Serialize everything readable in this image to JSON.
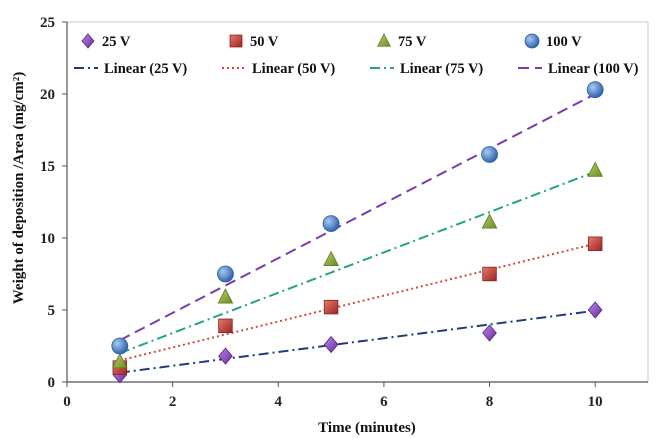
{
  "chart_data": {
    "type": "scatter",
    "xlabel": "Time (minutes)",
    "ylabel": "Weight of deposition /Area (mg/cm²)",
    "xlim": [
      0,
      11
    ],
    "ylim": [
      0,
      25
    ],
    "xticks": [
      0,
      2,
      4,
      6,
      8,
      10
    ],
    "yticks": [
      0,
      5,
      10,
      15,
      20,
      25
    ],
    "grid": false,
    "legend_position": "top",
    "series": [
      {
        "name": "25 V",
        "marker": "diamond",
        "color": "#8b3fbf",
        "x": [
          1,
          3,
          5,
          8,
          10
        ],
        "y": [
          0.5,
          1.8,
          2.6,
          3.4,
          5.0
        ],
        "trend": {
          "name": "Linear (25 V)",
          "dash": "dashdot",
          "color": "#1f3a78",
          "from": [
            1,
            0.65
          ],
          "to": [
            10,
            4.95
          ]
        }
      },
      {
        "name": "50 V",
        "marker": "square",
        "color": "#c0302c",
        "x": [
          1,
          3,
          5,
          8,
          10
        ],
        "y": [
          1.0,
          3.9,
          5.2,
          7.5,
          9.6
        ],
        "trend": {
          "name": "Linear (50 V)",
          "dash": "dotted",
          "color": "#d04a3a",
          "from": [
            1,
            1.5
          ],
          "to": [
            10,
            9.6
          ]
        }
      },
      {
        "name": "75 V",
        "marker": "triangle",
        "color": "#8aa43a",
        "x": [
          1,
          3,
          5,
          8,
          10
        ],
        "y": [
          1.4,
          5.9,
          8.5,
          11.1,
          14.7
        ],
        "trend": {
          "name": "Linear (75 V)",
          "dash": "dashdot",
          "color": "#23a487",
          "from": [
            1,
            2.0
          ],
          "to": [
            10,
            14.6
          ]
        }
      },
      {
        "name": "100 V",
        "marker": "circle",
        "color": "#3d74c2",
        "x": [
          1,
          3,
          5,
          8,
          10
        ],
        "y": [
          2.5,
          7.5,
          11.0,
          15.8,
          20.3
        ],
        "trend": {
          "name": "Linear (100 V)",
          "dash": "dashed",
          "color": "#7a3ab0",
          "from": [
            1,
            2.9
          ],
          "to": [
            10,
            20.0
          ]
        }
      }
    ]
  }
}
